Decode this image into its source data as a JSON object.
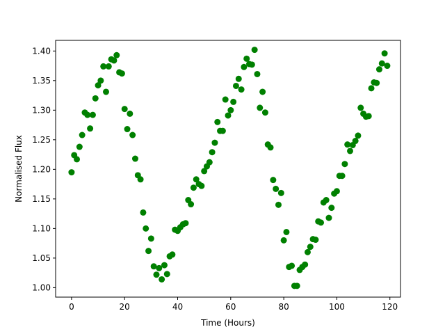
{
  "chart_data": {
    "type": "scatter",
    "xlabel": "Time (Hours)",
    "ylabel": "Normalised Flux",
    "xlim": [
      -6,
      124
    ],
    "ylim": [
      0.984,
      1.418
    ],
    "xticks": [
      0,
      20,
      40,
      60,
      80,
      100,
      120
    ],
    "yticks": [
      1.0,
      1.05,
      1.1,
      1.15,
      1.2,
      1.25,
      1.3,
      1.35,
      1.4
    ],
    "xtick_labels": [
      "0",
      "20",
      "40",
      "60",
      "80",
      "100",
      "120"
    ],
    "ytick_labels": [
      "1.00",
      "1.05",
      "1.10",
      "1.15",
      "1.20",
      "1.25",
      "1.30",
      "1.35",
      "1.40"
    ],
    "grid": false,
    "marker_color": "#008000",
    "series": [
      {
        "x": [
          0,
          1,
          2,
          3,
          4,
          5,
          6,
          7,
          8,
          9,
          10,
          11,
          12,
          13,
          14,
          15,
          16,
          17,
          18,
          19,
          20,
          21,
          22,
          23,
          24,
          25,
          26,
          27,
          28,
          29,
          30,
          31,
          32,
          33,
          34,
          35,
          36,
          37,
          38,
          39,
          40,
          41,
          42,
          43,
          44,
          45,
          46,
          47,
          48,
          49,
          50,
          51,
          52,
          53,
          54,
          55,
          56,
          57,
          58,
          59,
          60,
          61,
          62,
          63,
          64,
          65,
          66,
          67,
          68,
          69,
          70,
          71,
          72,
          73,
          74,
          75,
          76,
          77,
          78,
          79,
          80,
          81,
          82,
          83,
          84,
          85,
          86,
          87,
          88,
          89,
          90,
          91,
          92,
          93,
          94,
          95,
          96,
          97,
          98,
          99,
          100,
          101,
          102,
          103,
          104,
          105,
          106,
          107,
          108,
          109,
          110,
          111,
          112,
          113,
          114,
          115,
          116,
          117,
          118,
          119
        ],
        "y": [
          1.195,
          1.224,
          1.217,
          1.238,
          1.258,
          1.296,
          1.292,
          1.269,
          1.292,
          1.32,
          1.342,
          1.35,
          1.374,
          1.331,
          1.374,
          1.386,
          1.384,
          1.393,
          1.364,
          1.362,
          1.302,
          1.268,
          1.294,
          1.258,
          1.218,
          1.19,
          1.183,
          1.127,
          1.1,
          1.062,
          1.083,
          1.036,
          1.022,
          1.033,
          1.014,
          1.038,
          1.023,
          1.053,
          1.056,
          1.098,
          1.096,
          1.102,
          1.107,
          1.109,
          1.148,
          1.141,
          1.169,
          1.183,
          1.175,
          1.172,
          1.197,
          1.205,
          1.212,
          1.229,
          1.245,
          1.28,
          1.265,
          1.265,
          1.318,
          1.291,
          1.3,
          1.314,
          1.341,
          1.353,
          1.335,
          1.373,
          1.387,
          1.378,
          1.377,
          1.402,
          1.361,
          1.304,
          1.331,
          1.296,
          1.242,
          1.237,
          1.182,
          1.167,
          1.14,
          1.16,
          1.08,
          1.094,
          1.035,
          1.037,
          1.003,
          1.003,
          1.03,
          1.035,
          1.039,
          1.06,
          1.069,
          1.082,
          1.081,
          1.112,
          1.11,
          1.144,
          1.148,
          1.118,
          1.135,
          1.159,
          1.163,
          1.189,
          1.189,
          1.209,
          1.242,
          1.231,
          1.241,
          1.248,
          1.257,
          1.304,
          1.294,
          1.289,
          1.29,
          1.337,
          1.347,
          1.346,
          1.369,
          1.379,
          1.396,
          1.375
        ]
      }
    ]
  }
}
